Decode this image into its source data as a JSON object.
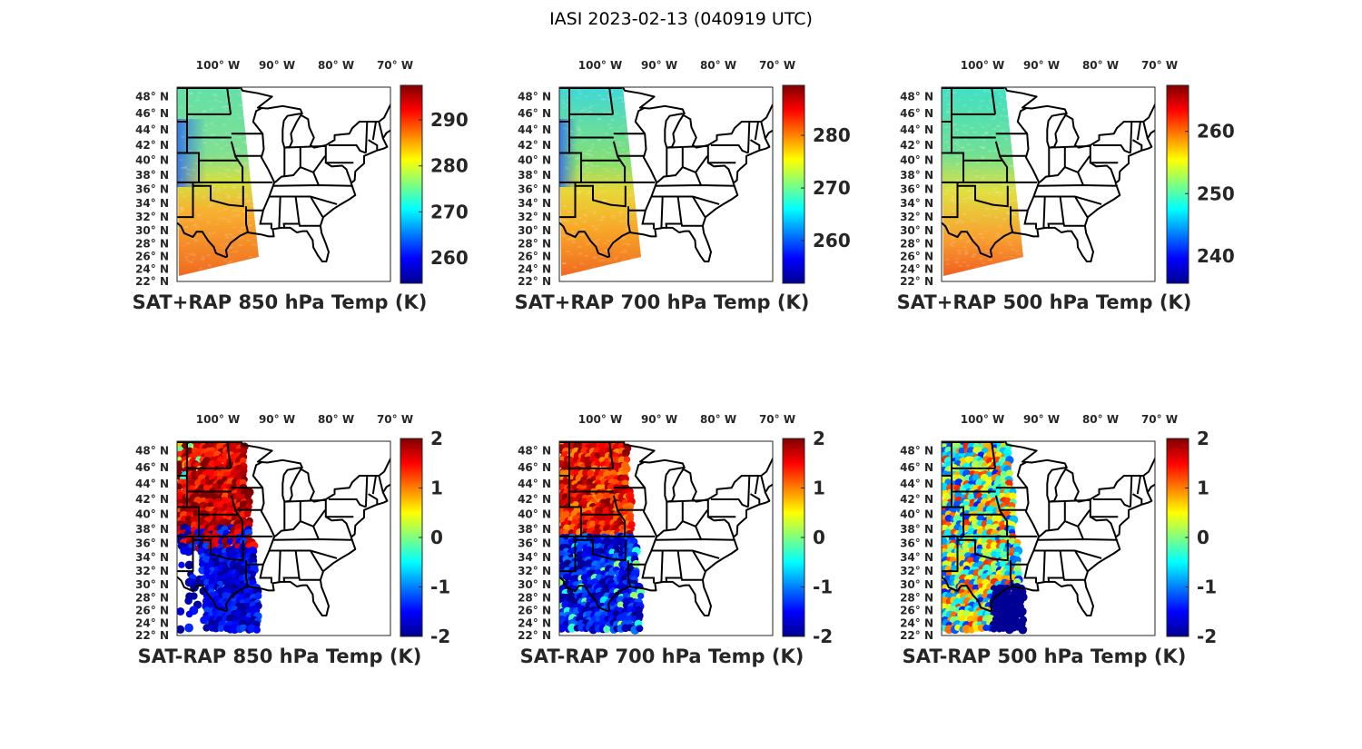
{
  "title": "IASI 2023-02-13 (040919 UTC)",
  "colormap": "jet",
  "lon_ticks": [
    -100,
    -90,
    -80,
    -70
  ],
  "lon_labels": [
    "100° W",
    "90° W",
    "80° W",
    "70° W"
  ],
  "lat_ticks": [
    48,
    46,
    44,
    42,
    40,
    38,
    36,
    34,
    32,
    30,
    28,
    26,
    24,
    22
  ],
  "lat_labels": [
    "48° N",
    "46° N",
    "44° N",
    "42° N",
    "40° N",
    "38° N",
    "36° N",
    "34° N",
    "32° N",
    "30° N",
    "28° N",
    "26° N",
    "24° N",
    "22° N"
  ],
  "panels": [
    {
      "title": "SAT+RAP 850 hPa Temp (K)",
      "kind": "field",
      "level": "850",
      "colorbar": {
        "min": 254.5,
        "max": 297.5,
        "ticks": [
          260,
          270,
          280,
          290
        ]
      }
    },
    {
      "title": "SAT+RAP 700 hPa Temp (K)",
      "kind": "field",
      "level": "700",
      "colorbar": {
        "min": 251.9,
        "max": 289.5,
        "ticks": [
          260,
          270,
          280
        ]
      }
    },
    {
      "title": "SAT+RAP 500 hPa Temp (K)",
      "kind": "field",
      "level": "500",
      "colorbar": {
        "min": 235.6,
        "max": 267.4,
        "ticks": [
          240,
          250,
          260
        ]
      }
    },
    {
      "title": "SAT-RAP 850 hPa Temp (K)",
      "kind": "difference",
      "level": "850",
      "colorbar": {
        "min": -2,
        "max": 2,
        "ticks": [
          -2,
          -1,
          0,
          1,
          2
        ]
      }
    },
    {
      "title": "SAT-RAP 700 hPa Temp (K)",
      "kind": "difference",
      "level": "700",
      "colorbar": {
        "min": -2,
        "max": 2,
        "ticks": [
          -2,
          -1,
          0,
          1,
          2
        ]
      }
    },
    {
      "title": "SAT-RAP 500 hPa Temp (K)",
      "kind": "difference",
      "level": "500",
      "colorbar": {
        "min": -2,
        "max": 2,
        "ticks": [
          -2,
          -1,
          0,
          1,
          2
        ]
      }
    }
  ]
}
